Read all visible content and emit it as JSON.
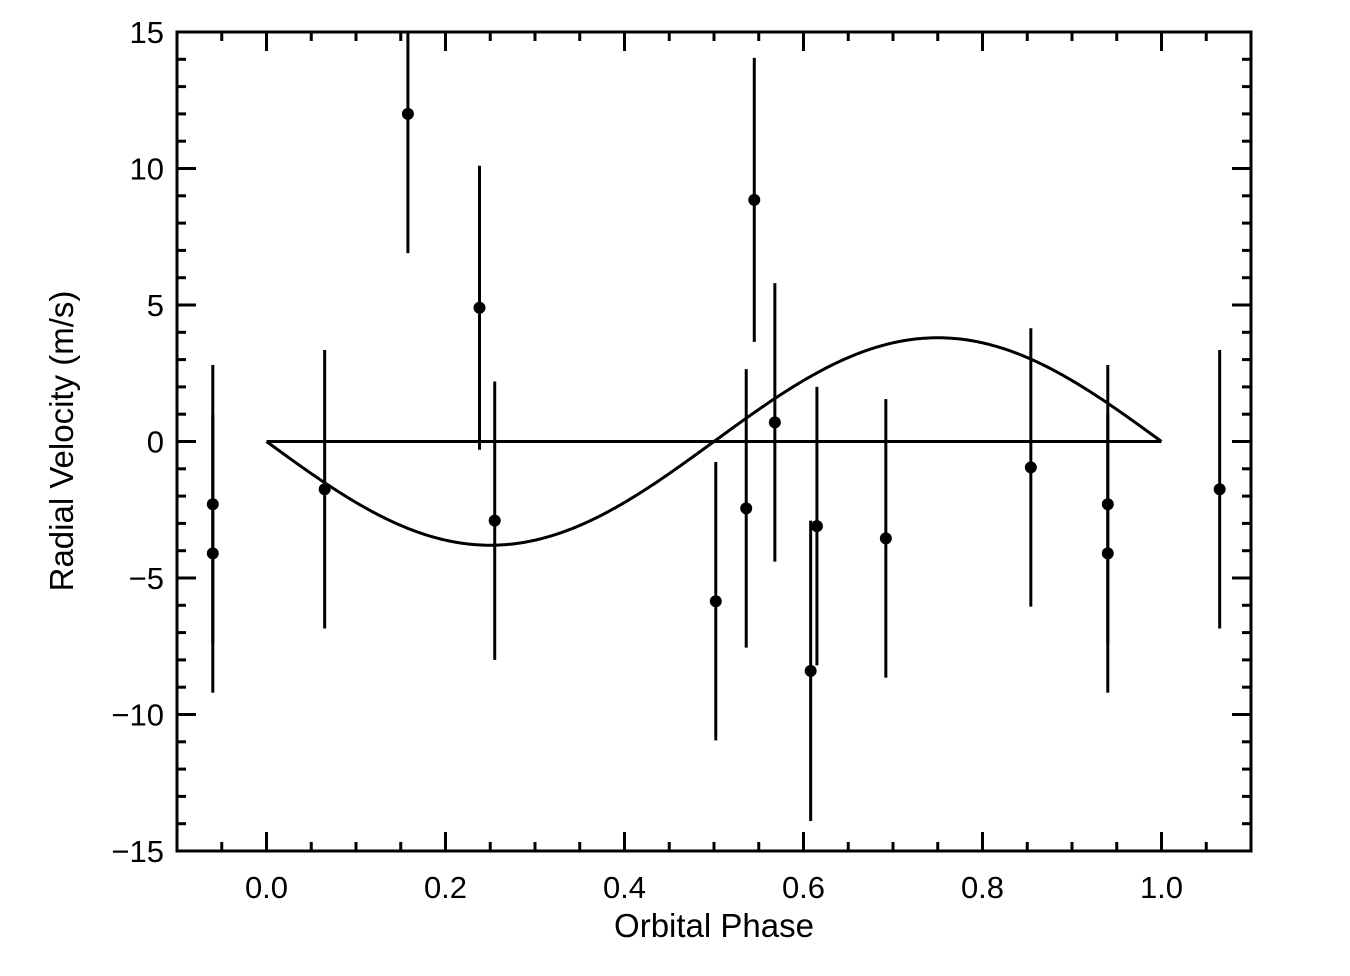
{
  "chart_data": {
    "type": "scatter",
    "title": "",
    "xlabel": "Orbital Phase",
    "ylabel": "Radial Velocity (m/s)",
    "xlim": [
      -0.1,
      1.1
    ],
    "ylim": [
      -15,
      15
    ],
    "x_ticks": [
      0.0,
      0.2,
      0.4,
      0.6,
      0.8,
      1.0
    ],
    "x_tick_labels": [
      "0.0",
      "0.2",
      "0.4",
      "0.6",
      "0.8",
      "1.0"
    ],
    "y_ticks": [
      -15,
      -10,
      -5,
      0,
      5,
      10,
      15
    ],
    "y_tick_labels": [
      "−15",
      "−10",
      "−5",
      "0",
      "5",
      "10",
      "15"
    ],
    "grid": false,
    "color": "#000000",
    "series": [
      {
        "type": "scatter",
        "points": [
          {
            "x": -0.06,
            "y": -2.3,
            "err": 5.1
          },
          {
            "x": -0.06,
            "y": -4.1,
            "err": 5.1
          },
          {
            "x": 0.065,
            "y": -1.75,
            "err": 5.1
          },
          {
            "x": 0.158,
            "y": 12.0,
            "err": 5.1
          },
          {
            "x": 0.238,
            "y": 4.9,
            "err": 5.2
          },
          {
            "x": 0.255,
            "y": -2.9,
            "err": 5.1
          },
          {
            "x": 0.502,
            "y": -5.85,
            "err": 5.1
          },
          {
            "x": 0.536,
            "y": -2.45,
            "err": 5.1
          },
          {
            "x": 0.545,
            "y": 8.85,
            "err": 5.2
          },
          {
            "x": 0.568,
            "y": 0.7,
            "err": 5.1
          },
          {
            "x": 0.608,
            "y": -8.4,
            "err": 5.5
          },
          {
            "x": 0.615,
            "y": -3.1,
            "err": 5.1
          },
          {
            "x": 0.692,
            "y": -3.55,
            "err": 5.1
          },
          {
            "x": 0.854,
            "y": -0.95,
            "err": 5.1
          },
          {
            "x": 0.94,
            "y": -2.3,
            "err": 5.1
          },
          {
            "x": 0.94,
            "y": -4.1,
            "err": 5.1
          },
          {
            "x": 1.065,
            "y": -1.75,
            "err": 5.1
          }
        ]
      },
      {
        "type": "line",
        "function": "sine",
        "amplitude": -3.8,
        "x_range": [
          0.0,
          1.0
        ]
      },
      {
        "type": "line",
        "function": "constant",
        "value": 0,
        "x_range": [
          0.0,
          1.0
        ]
      }
    ]
  }
}
